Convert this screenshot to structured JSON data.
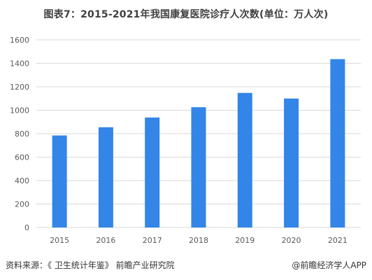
{
  "chart_data": {
    "type": "bar",
    "title": "图表7：2015-2021年我国康复医院诊疗人次数(单位：万人次)",
    "categories": [
      "2015",
      "2016",
      "2017",
      "2018",
      "2019",
      "2020",
      "2021"
    ],
    "values": [
      785,
      855,
      938,
      1026,
      1148,
      1100,
      1436
    ],
    "ylim": [
      0,
      1600
    ],
    "yticks": [
      0,
      200,
      400,
      600,
      800,
      1000,
      1200,
      1400,
      1600
    ],
    "grid": true,
    "bar_color": "#3385e8",
    "grid_color": "#d9d9d9"
  },
  "footer": {
    "source": "资料来源：《 卫生统计年鉴》 前瞻产业研究院",
    "brand": "@前瞻经济学人APP"
  }
}
